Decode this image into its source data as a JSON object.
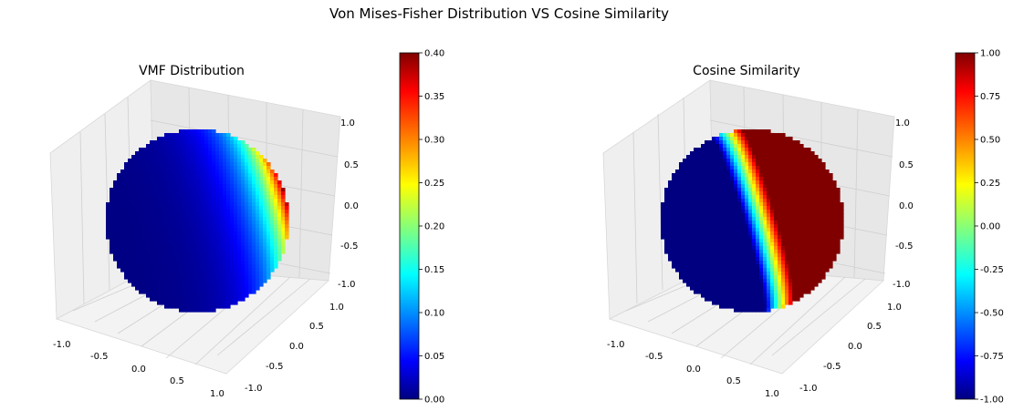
{
  "figure": {
    "suptitle": "Von Mises-Fisher Distribution VS Cosine Similarity"
  },
  "colormap": {
    "name": "jet",
    "stops": [
      "#000080",
      "#0000ff",
      "#00ffff",
      "#ffff00",
      "#ff0000",
      "#800000"
    ]
  },
  "chart_data": [
    {
      "type": "surface3d",
      "title": "VMF Distribution",
      "surface": "unit sphere",
      "colormap": "jet",
      "color_range": [
        0.0,
        0.4
      ],
      "peak_color_value": 0.4,
      "x_ticks": [
        "-1.0",
        "-0.5",
        "0.0",
        "0.5",
        "1.0"
      ],
      "y_ticks": [
        "-1.0",
        "-0.5",
        "0.0",
        "0.5",
        "1.0"
      ],
      "z_ticks": [
        "-1.0",
        "-0.5",
        "0.0",
        "0.5",
        "1.0"
      ],
      "colorbar_ticks": [
        "0.00",
        "0.05",
        "0.10",
        "0.15",
        "0.20",
        "0.25",
        "0.30",
        "0.35",
        "0.40"
      ],
      "grid": true
    },
    {
      "type": "surface3d",
      "title": "Cosine Similarity",
      "surface": "unit sphere",
      "colormap": "jet",
      "color_range": [
        -1.0,
        1.0
      ],
      "x_ticks": [
        "-1.0",
        "-0.5",
        "0.0",
        "0.5",
        "1.0"
      ],
      "y_ticks": [
        "-1.0",
        "-0.5",
        "0.0",
        "0.5",
        "1.0"
      ],
      "z_ticks": [
        "-1.0",
        "-0.5",
        "0.0",
        "0.5",
        "1.0"
      ],
      "colorbar_ticks": [
        "-1.00",
        "-0.75",
        "-0.50",
        "-0.25",
        "0.00",
        "0.25",
        "0.50",
        "0.75",
        "1.00"
      ],
      "grid": true
    }
  ]
}
